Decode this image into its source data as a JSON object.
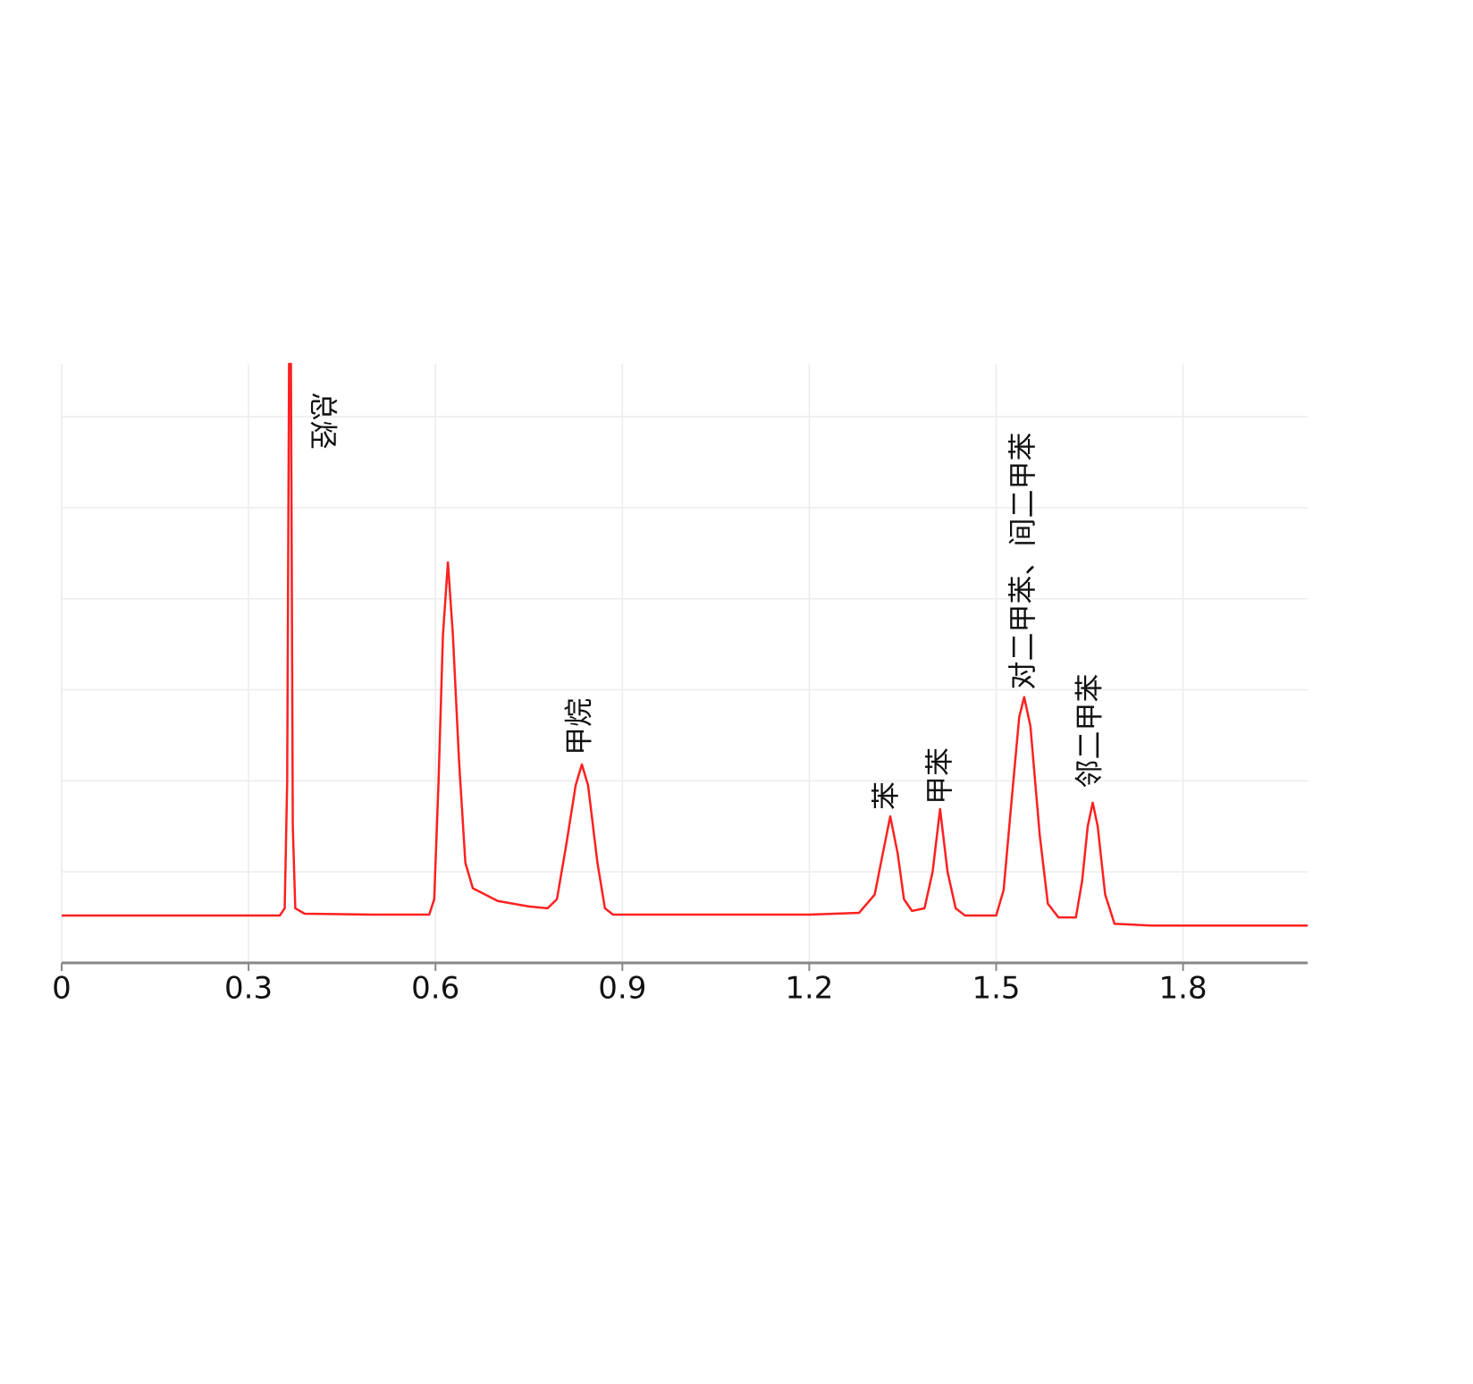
{
  "chart_data": {
    "type": "line",
    "x": [
      0,
      0.35,
      0.358,
      0.362,
      0.365,
      0.368,
      0.371,
      0.375,
      0.39,
      0.5,
      0.59,
      0.598,
      0.605,
      0.612,
      0.62,
      0.628,
      0.638,
      0.648,
      0.66,
      0.7,
      0.75,
      0.78,
      0.795,
      0.81,
      0.825,
      0.835,
      0.845,
      0.86,
      0.872,
      0.885,
      1.0,
      1.2,
      1.28,
      1.305,
      1.318,
      1.33,
      1.342,
      1.352,
      1.365,
      1.385,
      1.398,
      1.41,
      1.422,
      1.435,
      1.45,
      1.5,
      1.512,
      1.525,
      1.537,
      1.545,
      1.555,
      1.57,
      1.583,
      1.6,
      1.628,
      1.638,
      1.647,
      1.655,
      1.663,
      1.675,
      1.69,
      1.75,
      2.0
    ],
    "series": [
      {
        "color": "#ff2020",
        "values": [
          0.52,
          0.52,
          0.6,
          2,
          6.58,
          6.58,
          1.5,
          0.6,
          0.54,
          0.53,
          0.53,
          0.7,
          2.0,
          3.6,
          4.4,
          3.6,
          2.2,
          1.1,
          0.82,
          0.68,
          0.62,
          0.6,
          0.7,
          1.3,
          1.95,
          2.18,
          1.95,
          1.1,
          0.6,
          0.53,
          0.53,
          0.53,
          0.55,
          0.75,
          1.2,
          1.61,
          1.2,
          0.7,
          0.57,
          0.6,
          1.0,
          1.69,
          1.0,
          0.6,
          0.52,
          0.52,
          0.8,
          1.8,
          2.7,
          2.92,
          2.6,
          1.4,
          0.65,
          0.5,
          0.5,
          0.9,
          1.5,
          1.76,
          1.5,
          0.75,
          0.43,
          0.41,
          0.41
        ]
      }
    ],
    "xlim": [
      0,
      2
    ],
    "xticks": [
      0,
      0.3,
      0.6,
      0.9,
      1.2,
      1.5,
      1.8
    ],
    "ylim": [
      0,
      6.58
    ],
    "yticks": [
      1,
      2,
      3,
      4,
      5,
      6
    ],
    "grid": true,
    "annotations": [
      {
        "text": "总烃",
        "x": 0.417,
        "y": 6.27,
        "rotation": 90
      },
      {
        "text": "甲烷",
        "x": 0.833,
        "y": 2.28,
        "rotation": -90
      },
      {
        "text": "苯",
        "x": 1.326,
        "y": 1.68,
        "rotation": -90
      },
      {
        "text": "甲苯",
        "x": 1.412,
        "y": 1.74,
        "rotation": -90
      },
      {
        "text": "对二甲苯、间二甲苯",
        "x": 1.545,
        "y": 3.0,
        "rotation": -90
      },
      {
        "text": "邻二甲苯",
        "x": 1.652,
        "y": 1.92,
        "rotation": -90
      }
    ]
  }
}
